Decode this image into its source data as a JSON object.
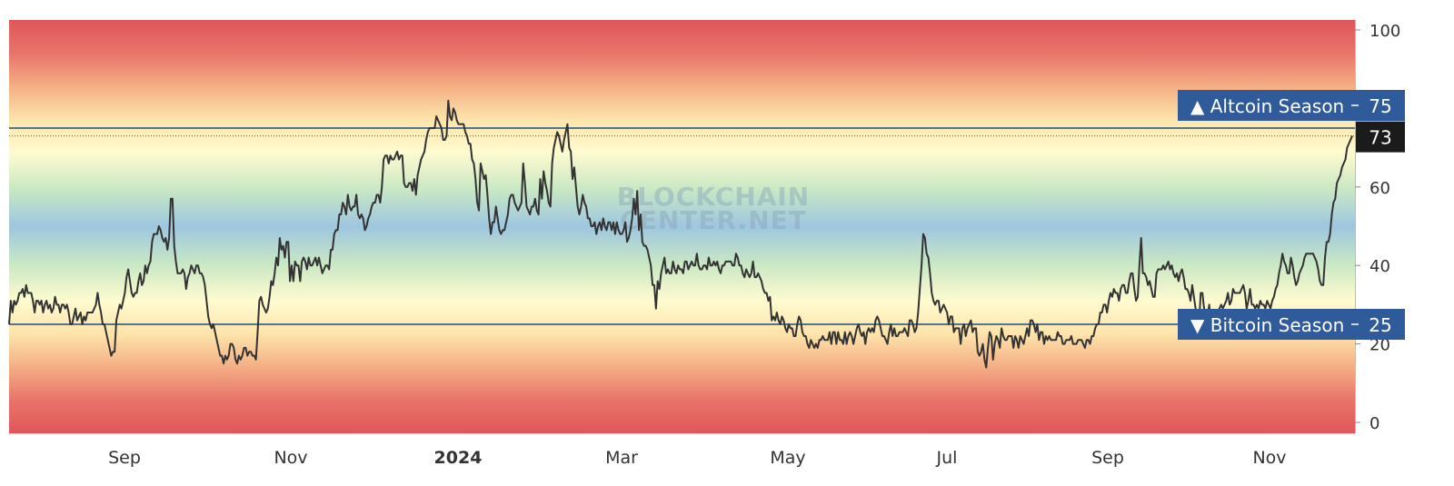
{
  "chart_data": {
    "type": "line",
    "ylim": [
      0,
      100
    ],
    "y_ticks": [
      0,
      20,
      40,
      60,
      80,
      100
    ],
    "y_tick_labels": [
      "0",
      "20",
      "40",
      "60",
      "",
      "100"
    ],
    "x_tick_labels": [
      "Sep",
      "Nov",
      "2024",
      "Mar",
      "May",
      "Jul",
      "Sep",
      "Nov"
    ],
    "x_tick_bold": [
      false,
      false,
      true,
      false,
      false,
      false,
      false,
      false
    ],
    "background": "gradient bands: red at 0 and 100, yellow near 25 and 75, blue near 50",
    "grid": false,
    "watermark": [
      "BLOCKCHAIN",
      "CENTER.NET"
    ],
    "thresholds": [
      {
        "label": "▲ Altcoin Season",
        "value": 75,
        "value_label": "75"
      },
      {
        "label": "▼ Bitcoin Season",
        "value": 25,
        "value_label": "25"
      }
    ],
    "last_value": 73,
    "last_value_label": "73",
    "series": [
      {
        "values": [
          25,
          31,
          28,
          31,
          30,
          31,
          33,
          33,
          34,
          32,
          35,
          33,
          33,
          33,
          31,
          28,
          31,
          31,
          30,
          31,
          28,
          30,
          31,
          29,
          30,
          28,
          29,
          32,
          30,
          30,
          28,
          30,
          30,
          29,
          30,
          28,
          25,
          25,
          27,
          29,
          26,
          27,
          28,
          25,
          27,
          26,
          28,
          28,
          28,
          28,
          29,
          30,
          33,
          30,
          28,
          25,
          25,
          23,
          21,
          19,
          17,
          18,
          18,
          26,
          28,
          30,
          29,
          31,
          33,
          37,
          39,
          36,
          33,
          32,
          33,
          33,
          36,
          38,
          35,
          36,
          40,
          38,
          40,
          41,
          46,
          48,
          48,
          48,
          50,
          49,
          47,
          46,
          47,
          44,
          47,
          57,
          57,
          45,
          41,
          38,
          38,
          38,
          39,
          38,
          34,
          37,
          38,
          40,
          39,
          38,
          40,
          40,
          38,
          38,
          37,
          35,
          31,
          27,
          25,
          24,
          25,
          23,
          21,
          19,
          17,
          17,
          15,
          17,
          16,
          17,
          20,
          20,
          19,
          16,
          15,
          17,
          16,
          17,
          19,
          19,
          17,
          18,
          18,
          17,
          17,
          16,
          23,
          31,
          32,
          30,
          29,
          28,
          29,
          32,
          36,
          35,
          38,
          42,
          40,
          47,
          44,
          45,
          42,
          46,
          46,
          36,
          40,
          36,
          41,
          40,
          40,
          36,
          41,
          42,
          41,
          39,
          42,
          40,
          40,
          41,
          42,
          40,
          42,
          40,
          38,
          39,
          40,
          40,
          39,
          44,
          44,
          48,
          49,
          49,
          53,
          53,
          56,
          55,
          53,
          58,
          55,
          54,
          55,
          55,
          58,
          53,
          52,
          53,
          52,
          49,
          50,
          52,
          53,
          55,
          56,
          56,
          58,
          58,
          56,
          60,
          67,
          68,
          68,
          66,
          68,
          67,
          67,
          68,
          69,
          67,
          68,
          68,
          61,
          60,
          60,
          61,
          61,
          59,
          62,
          58,
          63,
          65,
          67,
          68,
          69,
          72,
          74,
          75,
          75,
          75,
          75,
          78,
          77,
          76,
          75,
          72,
          72,
          73,
          82,
          78,
          77,
          80,
          79,
          77,
          76,
          76,
          76,
          76,
          74,
          73,
          71,
          71,
          67,
          66,
          62,
          56,
          54,
          66,
          64,
          62,
          63,
          58,
          52,
          48,
          51,
          51,
          55,
          52,
          49,
          48,
          49,
          49,
          51,
          53,
          57,
          58,
          58,
          56,
          55,
          54,
          55,
          56,
          66,
          61,
          55,
          54,
          53,
          55,
          55,
          57,
          54,
          53,
          62,
          57,
          64,
          61,
          59,
          56,
          55,
          66,
          70,
          72,
          74,
          73,
          71,
          69,
          72,
          74,
          76,
          70,
          69,
          62,
          65,
          60,
          55,
          53,
          55,
          58,
          56,
          55,
          52,
          52,
          50,
          50,
          51,
          48,
          50,
          51,
          49,
          52,
          50,
          49,
          51,
          51,
          49,
          51,
          48,
          51,
          49,
          48,
          48,
          49,
          51,
          46,
          47,
          49,
          52,
          57,
          53,
          59,
          49,
          53,
          46,
          45,
          45,
          44,
          42,
          40,
          35,
          35,
          29,
          36,
          34,
          38,
          40,
          42,
          38,
          39,
          38,
          38,
          41,
          39,
          38,
          40,
          39,
          39,
          38,
          41,
          41,
          39,
          40,
          41,
          40,
          40,
          43,
          40,
          39,
          39,
          40,
          40,
          39,
          42,
          40,
          40,
          41,
          40,
          41,
          39,
          38,
          40,
          40,
          41,
          41,
          41,
          41,
          40,
          40,
          43,
          42,
          40,
          40,
          38,
          37,
          39,
          38,
          37,
          38,
          41,
          37,
          37,
          38,
          37,
          36,
          34,
          33,
          33,
          31,
          32,
          26,
          27,
          26,
          28,
          26,
          25,
          27,
          26,
          24,
          23,
          25,
          24,
          24,
          22,
          22,
          25,
          27,
          26,
          23,
          22,
          22,
          20,
          19,
          21,
          20,
          19,
          20,
          19,
          21,
          21,
          22,
          21,
          21,
          21,
          23,
          20,
          23,
          23,
          20,
          23,
          21,
          21,
          20,
          23,
          20,
          22,
          23,
          22,
          20,
          22,
          24,
          25,
          23,
          22,
          23,
          20,
          23,
          24,
          23,
          24,
          23,
          26,
          27,
          26,
          24,
          22,
          22,
          21,
          20,
          23,
          25,
          22,
          24,
          22,
          22,
          23,
          23,
          23,
          24,
          23,
          22,
          26,
          26,
          25,
          23,
          24,
          28,
          34,
          40,
          48,
          47,
          43,
          42,
          38,
          33,
          31,
          30,
          31,
          31,
          28,
          29,
          30,
          29,
          28,
          25,
          27,
          27,
          23,
          24,
          24,
          24,
          20,
          24,
          25,
          22,
          24,
          25,
          26,
          23,
          24,
          24,
          18,
          17,
          18,
          20,
          16,
          14,
          19,
          23,
          22,
          16,
          20,
          22,
          21,
          19,
          24,
          22,
          21,
          21,
          22,
          22,
          22,
          19,
          22,
          21,
          19,
          22,
          21,
          20,
          22,
          24,
          22,
          26,
          26,
          25,
          23,
          25,
          21,
          23,
          23,
          20,
          22,
          21,
          22,
          21,
          21,
          21,
          21,
          23,
          22,
          22,
          20,
          20,
          21,
          21,
          21,
          22,
          20,
          20,
          20,
          21,
          21,
          21,
          20,
          19,
          21,
          21,
          20,
          22,
          22,
          24,
          25,
          25,
          28,
          28,
          30,
          30,
          28,
          31,
          33,
          32,
          34,
          33,
          33,
          31,
          34,
          35,
          35,
          33,
          33,
          36,
          38,
          38,
          34,
          31,
          32,
          40,
          47,
          38,
          38,
          37,
          35,
          36,
          34,
          32,
          32,
          38,
          39,
          39,
          39,
          40,
          39,
          40,
          41,
          39,
          40,
          38,
          37,
          38,
          36,
          38,
          39,
          37,
          34,
          34,
          33,
          31,
          35,
          32,
          29,
          28,
          25,
          33,
          33,
          29,
          27,
          27,
          30,
          24,
          24,
          25,
          25,
          27,
          29,
          30,
          29,
          30,
          31,
          33,
          30,
          31,
          34,
          33,
          33,
          33,
          33,
          34,
          35,
          33,
          29,
          31,
          34,
          30,
          30,
          29,
          30,
          29,
          31,
          30,
          30,
          29,
          31,
          30,
          29,
          31,
          32,
          34,
          35,
          38,
          40,
          43,
          41,
          40,
          38,
          38,
          42,
          40,
          37,
          35,
          36,
          38,
          39,
          40,
          42,
          43,
          43,
          43,
          43,
          43,
          42,
          41,
          39,
          36,
          35,
          35,
          42,
          46,
          46,
          48,
          53,
          56,
          57,
          61,
          62,
          63,
          65,
          66,
          67,
          70,
          71,
          72,
          73
        ]
      }
    ]
  }
}
